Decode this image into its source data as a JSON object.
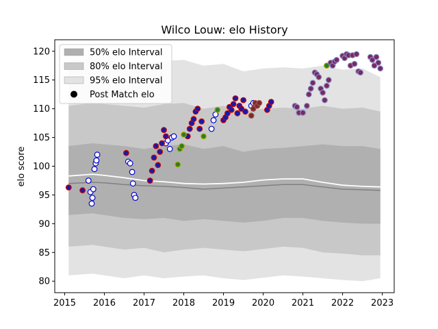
{
  "chart_data": {
    "type": "scatter",
    "title": "Wilco Louw: elo History",
    "xlabel": "",
    "ylabel": "elo score",
    "xlim": [
      2014.75,
      2023.3
    ],
    "ylim": [
      78,
      122
    ],
    "xticks": [
      2015,
      2016,
      2017,
      2018,
      2019,
      2020,
      2021,
      2022,
      2023
    ],
    "yticks": [
      80,
      85,
      90,
      95,
      100,
      105,
      110,
      115,
      120
    ],
    "grid": false,
    "legend_position": "top-left",
    "legend": [
      {
        "label": "50% elo Interval",
        "color": "#b0b0b0"
      },
      {
        "label": "80% elo Interval",
        "color": "#c8c8c8"
      },
      {
        "label": "95% elo Interval",
        "color": "#e3e3e3"
      },
      {
        "label": "Post Match elo",
        "color": "#000000"
      }
    ],
    "bands": {
      "x": [
        2015.1,
        2015.7,
        2016.0,
        2016.5,
        2017.0,
        2017.5,
        2018.0,
        2018.5,
        2019.0,
        2019.5,
        2020.0,
        2020.5,
        2021.0,
        2021.5,
        2022.0,
        2022.5,
        2022.95
      ],
      "p95_upper": [
        118.5,
        118.6,
        118.4,
        118.2,
        118.0,
        118.3,
        118.5,
        117.5,
        117.8,
        116.5,
        117.0,
        117.2,
        117.0,
        117.5,
        116.8,
        117.0,
        115.5
      ],
      "p80_upper": [
        110.5,
        111.0,
        110.8,
        110.5,
        110.2,
        110.8,
        111.0,
        110.0,
        110.5,
        109.5,
        110.0,
        110.2,
        110.0,
        110.5,
        110.0,
        110.2,
        109.5
      ],
      "p50_upper": [
        103.5,
        104.0,
        103.8,
        103.5,
        103.0,
        103.5,
        103.8,
        103.0,
        103.5,
        102.5,
        103.0,
        103.2,
        103.5,
        103.8,
        103.5,
        103.5,
        103.0
      ],
      "median": [
        98.3,
        98.6,
        98.4,
        98.0,
        97.5,
        97.3,
        97.0,
        96.9,
        97.0,
        97.2,
        97.6,
        97.8,
        97.8,
        97.2,
        96.7,
        96.5,
        96.4
      ],
      "mean": [
        97.0,
        97.2,
        97.1,
        96.8,
        96.6,
        96.5,
        96.3,
        96.0,
        96.2,
        96.4,
        96.6,
        96.8,
        96.8,
        96.4,
        96.0,
        95.9,
        95.8
      ],
      "p50_lower": [
        91.5,
        91.8,
        91.5,
        91.0,
        90.8,
        91.0,
        90.5,
        90.8,
        90.5,
        90.2,
        90.5,
        91.0,
        91.0,
        90.5,
        90.2,
        90.0,
        90.0
      ],
      "p80_lower": [
        86.0,
        86.3,
        86.0,
        85.5,
        85.8,
        85.0,
        85.5,
        85.8,
        85.5,
        85.2,
        85.6,
        86.0,
        85.8,
        85.0,
        84.8,
        84.5,
        84.5
      ],
      "p95_lower": [
        81.0,
        81.3,
        81.0,
        80.5,
        81.0,
        80.5,
        80.8,
        81.0,
        80.5,
        80.2,
        80.6,
        81.0,
        80.8,
        80.5,
        80.2,
        80.0,
        80.5
      ]
    },
    "series": [
      {
        "face": "#ffffff",
        "edge": "#0000cc",
        "x": [
          2015.6,
          2015.65,
          2015.68,
          2015.7,
          2015.72,
          2015.75,
          2015.78,
          2015.8,
          2015.82,
          2016.6,
          2016.65,
          2016.7,
          2016.72,
          2016.75,
          2016.78,
          2017.55,
          2017.6,
          2017.65,
          2017.7,
          2017.75,
          2018.7,
          2018.75,
          2018.8,
          2019.7,
          2019.75
        ],
        "y": [
          97.5,
          95.5,
          93.5,
          94.5,
          96.0,
          99.5,
          100.5,
          101.0,
          102.0,
          100.8,
          100.5,
          99.0,
          97.0,
          95.0,
          94.5,
          104.0,
          104.5,
          103.0,
          105.0,
          105.2,
          106.5,
          108.0,
          109.0,
          110.5,
          111.0
        ]
      },
      {
        "face": "#1a1aa6",
        "edge": "#cc0000",
        "x": [
          2015.1,
          2015.45,
          2016.55,
          2017.15,
          2017.2,
          2017.25,
          2017.3,
          2017.35,
          2017.4,
          2017.45,
          2017.5,
          2017.55,
          2018.1,
          2018.15,
          2018.2,
          2018.25,
          2018.3,
          2018.35,
          2018.4,
          2018.45,
          2019.0,
          2019.05,
          2019.1,
          2019.15,
          2019.2,
          2019.25,
          2019.3,
          2019.35,
          2019.4,
          2019.45,
          2019.5,
          2019.55,
          2020.1,
          2020.15,
          2020.2
        ],
        "y": [
          96.3,
          95.8,
          102.3,
          97.5,
          99.2,
          101.5,
          103.5,
          100.2,
          102.5,
          104.0,
          106.3,
          105.2,
          105.2,
          106.5,
          107.5,
          108.2,
          109.5,
          110.0,
          106.5,
          107.8,
          108.0,
          108.5,
          109.2,
          110.3,
          109.8,
          110.8,
          111.8,
          109.2,
          110.5,
          110.0,
          111.5,
          109.5,
          109.8,
          110.5,
          111.2
        ]
      },
      {
        "face": "#2a7f2a",
        "edge": "#aaaa00",
        "x": [
          2017.85,
          2017.9,
          2017.95,
          2018.0,
          2018.5,
          2018.85,
          2021.6
        ],
        "y": [
          100.3,
          103.0,
          103.5,
          105.5,
          105.2,
          109.8,
          117.5
        ]
      },
      {
        "face": "#7a2a2a",
        "edge": "#aa5555",
        "x": [
          2019.7,
          2019.75,
          2019.8,
          2019.85,
          2019.9
        ],
        "y": [
          108.8,
          110.0,
          111.0,
          110.5,
          111.0
        ]
      },
      {
        "face": "#7a2a5a",
        "edge": "#8888cc",
        "x": [
          2020.8,
          2020.85,
          2020.9,
          2021.0,
          2021.1,
          2021.15,
          2021.2,
          2021.25,
          2021.3,
          2021.35,
          2021.4,
          2021.45,
          2021.5,
          2021.55,
          2021.6,
          2021.65,
          2021.7,
          2021.75,
          2021.8,
          2021.85,
          2022.0,
          2022.05,
          2022.1,
          2022.15,
          2022.2,
          2022.25,
          2022.3,
          2022.35,
          2022.4,
          2022.45,
          2022.7,
          2022.75,
          2022.8,
          2022.85,
          2022.9,
          2022.95
        ],
        "y": [
          110.5,
          110.3,
          109.3,
          109.3,
          110.5,
          112.5,
          113.5,
          114.5,
          116.3,
          116.0,
          115.5,
          113.5,
          112.8,
          111.5,
          114.0,
          115.0,
          118.0,
          117.5,
          118.2,
          118.5,
          119.2,
          118.8,
          119.5,
          119.3,
          117.5,
          119.3,
          117.8,
          119.5,
          116.5,
          116.3,
          119.0,
          118.5,
          117.5,
          119.0,
          118.0,
          117.0
        ]
      }
    ]
  }
}
